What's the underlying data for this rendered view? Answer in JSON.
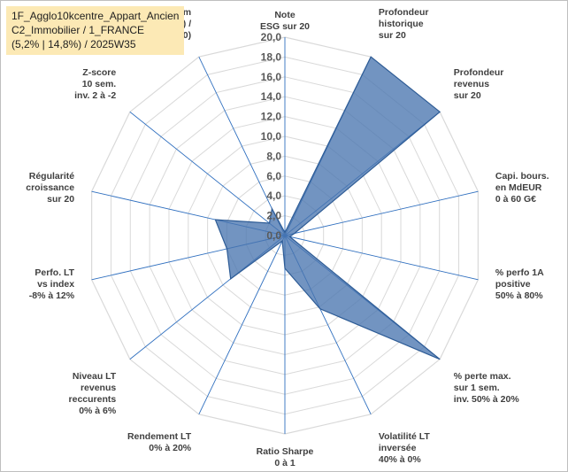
{
  "chart_data": {
    "type": "radar",
    "title_lines": [
      "1F_Agglo10kcentre_Appart_Ancien",
      "C2_Immobilier / 1_FRANCE",
      "(5,2% | 14,8%) / 2025W35"
    ],
    "r_range": [
      0,
      20
    ],
    "r_ticks": [
      "0,0",
      "2,0",
      "4,0",
      "6,0",
      "8,0",
      "10,0",
      "12,0",
      "14,0",
      "16,0",
      "18,0",
      "20,0"
    ],
    "grid": true,
    "categories": [
      "Note\nESG sur 20",
      "Profondeur\nhistorique\nsur 20",
      "Profondeur\nrevenus\nsur 20",
      "Capi. bours.\nen MdEUR\n0 à 60 G€",
      "% perfo 1A\npositive\n50% à 80%",
      "% perte max.\nsur 1 sem.\ninv. 50% à 20%",
      "Volatilité LT\ninversée\n40% à 0%",
      "Ratio Sharpe\n0 à 1",
      "Rendement LT\n0% à 20%",
      "Niveau LT\nrevenus\nreccurents\n0% à 6%",
      "Perfo. LT\nvs index\n-8% à 12%",
      "Régularité\ncroissance\nsur 20",
      "Z-score\n10 sem.\ninv. 2 à -2",
      "Momentum\nAchat (20) /\nVente (0)"
    ],
    "series": [
      {
        "values": [
          0.3,
          20.0,
          20.0,
          1.0,
          0.5,
          20.0,
          8.2,
          3.3,
          0.6,
          7.0,
          6.0,
          7.2,
          2.0,
          3.0
        ]
      }
    ],
    "colors": {
      "fill": "#4a76b0",
      "fill_opacity": "0.78",
      "stroke": "#2e5c96",
      "grid": "#d9d9d9",
      "spoke": "#2f6fbf",
      "title_bg": "#fce9b5",
      "momentum_label": "#d9c493"
    }
  }
}
